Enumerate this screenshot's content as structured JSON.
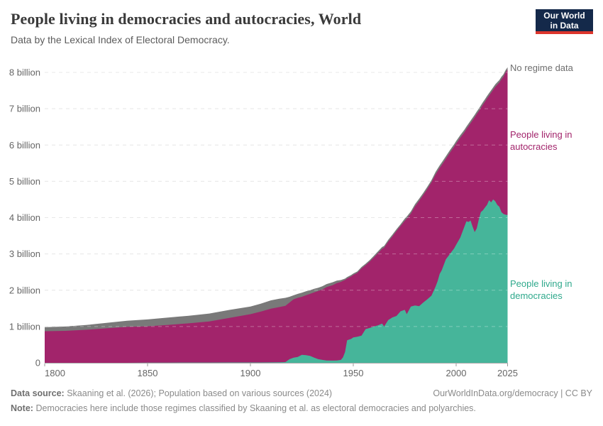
{
  "header": {
    "title": "People living in democracies and autocracies, World",
    "subtitle": "Data by the Lexical Index of Electoral Democracy."
  },
  "logo": {
    "line1": "Our World",
    "line2": "in Data",
    "bg_color": "#14294a",
    "bar_color": "#dc352c"
  },
  "labels": {
    "no_regime_data": "No regime data",
    "autocracies": "People living in autocracies",
    "democracies": "People living in democracies"
  },
  "chart_data": {
    "type": "area",
    "stacked": true,
    "title": "People living in democracies and autocracies, World",
    "unit": "billion people",
    "xlabel": "",
    "ylabel": "",
    "xlim": [
      1800,
      2025
    ],
    "ylim": [
      0,
      8.2
    ],
    "grid": "horizontal-dashed",
    "legend_position": "right-inline-labels",
    "x": [
      1800,
      1810,
      1820,
      1830,
      1840,
      1850,
      1860,
      1870,
      1880,
      1890,
      1900,
      1905,
      1910,
      1914,
      1917,
      1919,
      1921,
      1923,
      1925,
      1927,
      1929,
      1931,
      1933,
      1935,
      1937,
      1940,
      1942,
      1944,
      1945,
      1946,
      1947,
      1949,
      1950,
      1952,
      1954,
      1956,
      1958,
      1960,
      1962,
      1964,
      1965,
      1967,
      1969,
      1971,
      1973,
      1975,
      1976,
      1978,
      1980,
      1982,
      1984,
      1986,
      1988,
      1990,
      1991,
      1992,
      1993,
      1995,
      1997,
      1999,
      2000,
      2002,
      2004,
      2005,
      2006,
      2007,
      2008,
      2009,
      2010,
      2011,
      2012,
      2013,
      2014,
      2015,
      2016,
      2017,
      2018,
      2019,
      2020,
      2021,
      2022,
      2023,
      2024,
      2025
    ],
    "series": [
      {
        "name": "People living in democracies",
        "color": "#46b59a",
        "values": [
          0,
          0,
          0,
          0,
          0,
          0.005,
          0.005,
          0.007,
          0.008,
          0.01,
          0.01,
          0.01,
          0.012,
          0.015,
          0.02,
          0.1,
          0.14,
          0.16,
          0.22,
          0.21,
          0.19,
          0.14,
          0.1,
          0.08,
          0.065,
          0.06,
          0.065,
          0.08,
          0.15,
          0.3,
          0.62,
          0.66,
          0.7,
          0.72,
          0.75,
          0.93,
          0.96,
          1.0,
          1.03,
          1.08,
          1.0,
          1.18,
          1.25,
          1.29,
          1.42,
          1.46,
          1.34,
          1.55,
          1.58,
          1.56,
          1.66,
          1.75,
          1.85,
          2.1,
          2.25,
          2.45,
          2.55,
          2.85,
          3.0,
          3.15,
          3.25,
          3.45,
          3.75,
          3.9,
          3.88,
          3.92,
          3.75,
          3.6,
          3.7,
          3.95,
          4.15,
          4.2,
          4.28,
          4.35,
          4.48,
          4.42,
          4.5,
          4.45,
          4.35,
          4.3,
          4.15,
          4.1,
          4.08,
          4.07
        ]
      },
      {
        "name": "People living in autocracies",
        "color": "#a2246b",
        "values": [
          0.87,
          0.88,
          0.91,
          0.95,
          0.99,
          1.0,
          1.04,
          1.08,
          1.13,
          1.23,
          1.33,
          1.4,
          1.48,
          1.52,
          1.55,
          1.56,
          1.61,
          1.63,
          1.6,
          1.65,
          1.71,
          1.8,
          1.88,
          1.94,
          2.02,
          2.08,
          2.13,
          2.15,
          2.11,
          1.98,
          1.7,
          1.72,
          1.72,
          1.76,
          1.85,
          1.76,
          1.83,
          1.9,
          1.99,
          2.06,
          2.17,
          2.16,
          2.23,
          2.34,
          2.35,
          2.45,
          2.63,
          2.56,
          2.73,
          2.9,
          2.96,
          3.04,
          3.12,
          3.09,
          3.03,
          2.92,
          2.9,
          2.77,
          2.79,
          2.8,
          2.79,
          2.75,
          2.6,
          2.54,
          2.64,
          2.68,
          2.93,
          3.16,
          3.15,
          2.98,
          2.87,
          2.91,
          2.91,
          2.93,
          2.88,
          3.02,
          3.02,
          3.15,
          3.31,
          3.42,
          3.66,
          3.78,
          3.92,
          4.01
        ]
      },
      {
        "name": "No regime data",
        "color": "#797979",
        "values": [
          0.11,
          0.12,
          0.13,
          0.15,
          0.17,
          0.19,
          0.2,
          0.21,
          0.22,
          0.22,
          0.21,
          0.22,
          0.23,
          0.23,
          0.22,
          0.16,
          0.11,
          0.11,
          0.11,
          0.11,
          0.1,
          0.1,
          0.09,
          0.09,
          0.085,
          0.08,
          0.07,
          0.05,
          0.04,
          0.04,
          0.04,
          0.04,
          0.04,
          0.04,
          0.04,
          0.04,
          0.04,
          0.05,
          0.05,
          0.05,
          0.05,
          0.05,
          0.05,
          0.05,
          0.05,
          0.06,
          0.06,
          0.06,
          0.06,
          0.06,
          0.06,
          0.06,
          0.06,
          0.07,
          0.07,
          0.07,
          0.07,
          0.07,
          0.07,
          0.07,
          0.07,
          0.07,
          0.07,
          0.07,
          0.07,
          0.07,
          0.07,
          0.07,
          0.07,
          0.07,
          0.07,
          0.07,
          0.07,
          0.07,
          0.07,
          0.07,
          0.07,
          0.07,
          0.07,
          0.07,
          0.07,
          0.07,
          0.06,
          0.06
        ]
      }
    ],
    "xticks": {
      "values": [
        1800,
        1850,
        1900,
        1950,
        2000,
        2025
      ],
      "labels": [
        "1800",
        "1850",
        "1900",
        "1950",
        "2000",
        "2025"
      ]
    },
    "yticks": {
      "values": [
        0,
        1,
        2,
        3,
        4,
        5,
        6,
        7,
        8
      ],
      "labels": [
        "0",
        "1 billion",
        "2 billion",
        "3 billion",
        "4 billion",
        "5 billion",
        "6 billion",
        "7 billion",
        "8 billion"
      ]
    },
    "colors": {
      "grid": "#dddddd",
      "axis_text": "#666666",
      "baseline": "#aaaaaa",
      "tick": "#999999"
    }
  },
  "footer": {
    "source_label": "Data source:",
    "source_text": "Skaaning et al. (2026); Population based on various sources (2024)",
    "link": "OurWorldInData.org/democracy | CC BY",
    "note_label": "Note:",
    "note_text": "Democracies here include those regimes classified by Skaaning et al. as electoral democracies and polyarchies."
  }
}
